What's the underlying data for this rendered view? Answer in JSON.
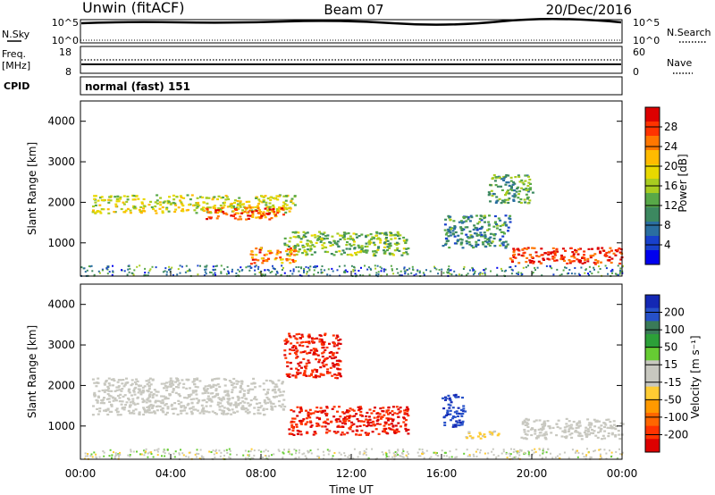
{
  "header": {
    "station": "Unwin (fitACF)",
    "beam": "Beam 07",
    "date": "20/Dec/2016"
  },
  "noise_panel": {
    "left_label": "N.Sky",
    "right_label": "N.Search",
    "left_ticks": [
      "10^5",
      "10^0"
    ],
    "right_ticks": [
      "10^5",
      "10^0"
    ]
  },
  "freq_panel": {
    "left_label_line1": "Freq.",
    "left_label_line2": "[MHz]",
    "right_label": "Nave",
    "left_ticks": [
      "18",
      "8"
    ],
    "right_ticks": [
      "60",
      "0"
    ]
  },
  "cpid": {
    "label": "CPID",
    "value": "normal (fast) 151"
  },
  "power_panel": {
    "ylabel": "Slant Range [km]",
    "cbar_label": "Power [dB]",
    "cbar_ticks": [
      "28",
      "24",
      "20",
      "16",
      "12",
      "8",
      "4"
    ],
    "cbar_colors": [
      "#dd0000",
      "#ff3300",
      "#ff7700",
      "#ffbb00",
      "#e8d800",
      "#a8cc20",
      "#58a848",
      "#3c8860",
      "#2a6ea0",
      "#1840cc",
      "#0000ee"
    ]
  },
  "velocity_panel": {
    "ylabel": "Slant Range [km]",
    "cbar_label": "Velocity [m s⁻¹]",
    "cbar_ticks": [
      "200",
      "100",
      "50",
      "15",
      "-15",
      "-50",
      "-100",
      "-200"
    ],
    "cbar_colors": [
      "#1428b4",
      "#2650c8",
      "#3a7a58",
      "#2ca038",
      "#66cc33",
      "#c8c8c0",
      "#c8c8c0",
      "#ffcc33",
      "#ff9900",
      "#ff6600",
      "#ff3300",
      "#dd0000"
    ]
  },
  "chart_data": {
    "type": "heatmap",
    "x_ticks": [
      "00:00",
      "04:00",
      "08:00",
      "12:00",
      "16:00",
      "20:00",
      "00:00"
    ],
    "xlabel": "Time UT",
    "y_ticks": [
      1000,
      2000,
      3000,
      4000
    ],
    "xlim_hours": [
      0,
      24
    ],
    "ylim_km": [
      180,
      4500
    ],
    "power_echo_regions": [
      {
        "t": [
          0.5,
          9.5
        ],
        "r": [
          1750,
          2200
        ],
        "db": 18
      },
      {
        "t": [
          5.5,
          9.0
        ],
        "r": [
          1600,
          1900
        ],
        "db": 26
      },
      {
        "t": [
          7.5,
          9.5
        ],
        "r": [
          500,
          900
        ],
        "db": 24
      },
      {
        "t": [
          9.0,
          14.5
        ],
        "r": [
          700,
          1300
        ],
        "db": 14
      },
      {
        "t": [
          16.0,
          19.0
        ],
        "r": [
          900,
          1700
        ],
        "db": 10
      },
      {
        "t": [
          19.0,
          24.0
        ],
        "r": [
          500,
          900
        ],
        "db": 28
      },
      {
        "t": [
          18.0,
          20.0
        ],
        "r": [
          2000,
          2700
        ],
        "db": 12
      }
    ],
    "velocity_echo_regions": [
      {
        "t": [
          0.5,
          9.0
        ],
        "r": [
          1300,
          2200
        ],
        "v": 0
      },
      {
        "t": [
          9.2,
          14.5
        ],
        "r": [
          800,
          1500
        ],
        "v": -200
      },
      {
        "t": [
          16.0,
          17.0
        ],
        "r": [
          1000,
          1800
        ],
        "v": 200
      },
      {
        "t": [
          17.0,
          18.5
        ],
        "r": [
          700,
          900
        ],
        "v": -50
      },
      {
        "t": [
          19.5,
          24.0
        ],
        "r": [
          700,
          1200
        ],
        "v": 0
      },
      {
        "t": [
          9.0,
          11.5
        ],
        "r": [
          2200,
          3300
        ],
        "v": -200
      }
    ]
  }
}
